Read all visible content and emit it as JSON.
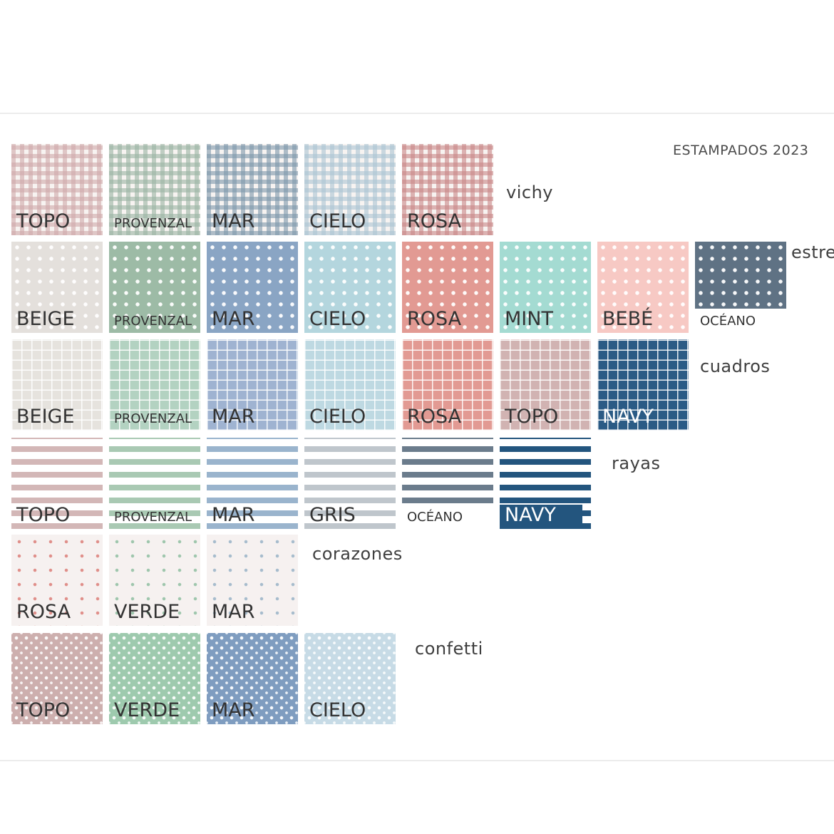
{
  "title": "ESTAMPADOS 2023",
  "categories": [
    {
      "key": "vichy",
      "label": "vichy",
      "pattern": "gingham",
      "swatches": [
        {
          "name": "TOPO",
          "color": "#cfa9aa",
          "small": false
        },
        {
          "name": "PROVENZAL",
          "color": "#9ab4a3",
          "small": true
        },
        {
          "name": "MAR",
          "color": "#7d97ab",
          "small": false
        },
        {
          "name": "CIELO",
          "color": "#abc4d3",
          "small": false
        },
        {
          "name": "ROSA",
          "color": "#c98787",
          "small": false
        }
      ]
    },
    {
      "key": "estrellas",
      "label": "estrellas",
      "pattern": "stars",
      "swatches": [
        {
          "name": "BEIGE",
          "color": "#e4e0dc",
          "small": false
        },
        {
          "name": "PROVENZAL",
          "color": "#9dbba6",
          "small": true
        },
        {
          "name": "MAR",
          "color": "#8aa5c4",
          "small": false
        },
        {
          "name": "CIELO",
          "color": "#b4d6de",
          "small": false
        },
        {
          "name": "ROSA",
          "color": "#e29a93",
          "small": false
        },
        {
          "name": "MINT",
          "color": "#a4dbd2",
          "small": false
        },
        {
          "name": "BEBÉ",
          "color": "#f7c9c4",
          "small": false
        },
        {
          "name": "OCÉANO",
          "color": "#5f7284",
          "small": true,
          "boxed": true
        }
      ]
    },
    {
      "key": "cuadros",
      "label": "cuadros",
      "pattern": "grid",
      "swatches": [
        {
          "name": "BEIGE",
          "color": "#e6e3de",
          "small": false
        },
        {
          "name": "PROVENZAL",
          "color": "#b3d2c1",
          "small": true
        },
        {
          "name": "MAR",
          "color": "#9fb3d1",
          "small": false
        },
        {
          "name": "CIELO",
          "color": "#bed9e2",
          "small": false
        },
        {
          "name": "ROSA",
          "color": "#e29a93",
          "small": false
        },
        {
          "name": "TOPO",
          "color": "#d1b3b2",
          "small": false
        },
        {
          "name": "NAVY",
          "color": "#2b5b85",
          "small": false,
          "white": true
        }
      ]
    },
    {
      "key": "rayas",
      "label": "rayas",
      "pattern": "stripes",
      "swatches": [
        {
          "name": "TOPO",
          "color": "#d3b7b7",
          "small": false
        },
        {
          "name": "PROVENZAL",
          "color": "#a9c9b3",
          "small": true
        },
        {
          "name": "MAR",
          "color": "#9ab4cd",
          "small": false
        },
        {
          "name": "GRIS",
          "color": "#bfc6cc",
          "small": false
        },
        {
          "name": "OCÉANO",
          "color": "#6b7c8c",
          "small": true,
          "boxed": true
        },
        {
          "name": "NAVY",
          "color": "#23557e",
          "small": false,
          "white": true,
          "navybox": true
        }
      ]
    },
    {
      "key": "corazones",
      "label": "corazones",
      "pattern": "hearts",
      "swatches": [
        {
          "name": "ROSA",
          "color": "#e08f8a",
          "small": false
        },
        {
          "name": "VERDE",
          "color": "#9fc6ad",
          "small": false
        },
        {
          "name": "MAR",
          "color": "#a7bccd",
          "small": false
        }
      ]
    },
    {
      "key": "confetti",
      "label": "confetti",
      "pattern": "confetti",
      "swatches": [
        {
          "name": "TOPO",
          "color": "#cdafae",
          "small": false
        },
        {
          "name": "VERDE",
          "color": "#9ecaae",
          "small": false
        },
        {
          "name": "MAR",
          "color": "#7f9dc0",
          "small": false
        },
        {
          "name": "CIELO",
          "color": "#c7dbe6",
          "small": false
        }
      ]
    }
  ]
}
